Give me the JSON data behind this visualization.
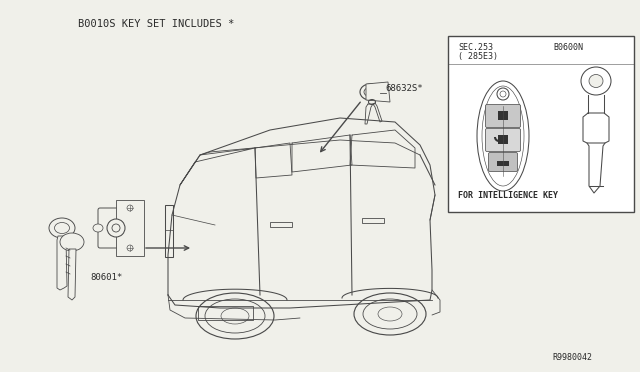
{
  "bg_color": "#f0f0ea",
  "line_color": "#4a4a4a",
  "text_color": "#2a2a2a",
  "white": "#ffffff",
  "title_text": "B0010S KEY SET INCLUDES *",
  "label_68632": "68632S*",
  "label_80601": "80601*",
  "label_r9980042": "R9980042",
  "inset_label1": "SEC.253",
  "inset_label2": "( 285E3)",
  "inset_label3": "B0600N",
  "inset_label4": "FOR INTELLIGENCE KEY",
  "title_fontsize": 7.5,
  "label_fontsize": 6.5,
  "small_fontsize": 6.0,
  "lw": 0.75
}
